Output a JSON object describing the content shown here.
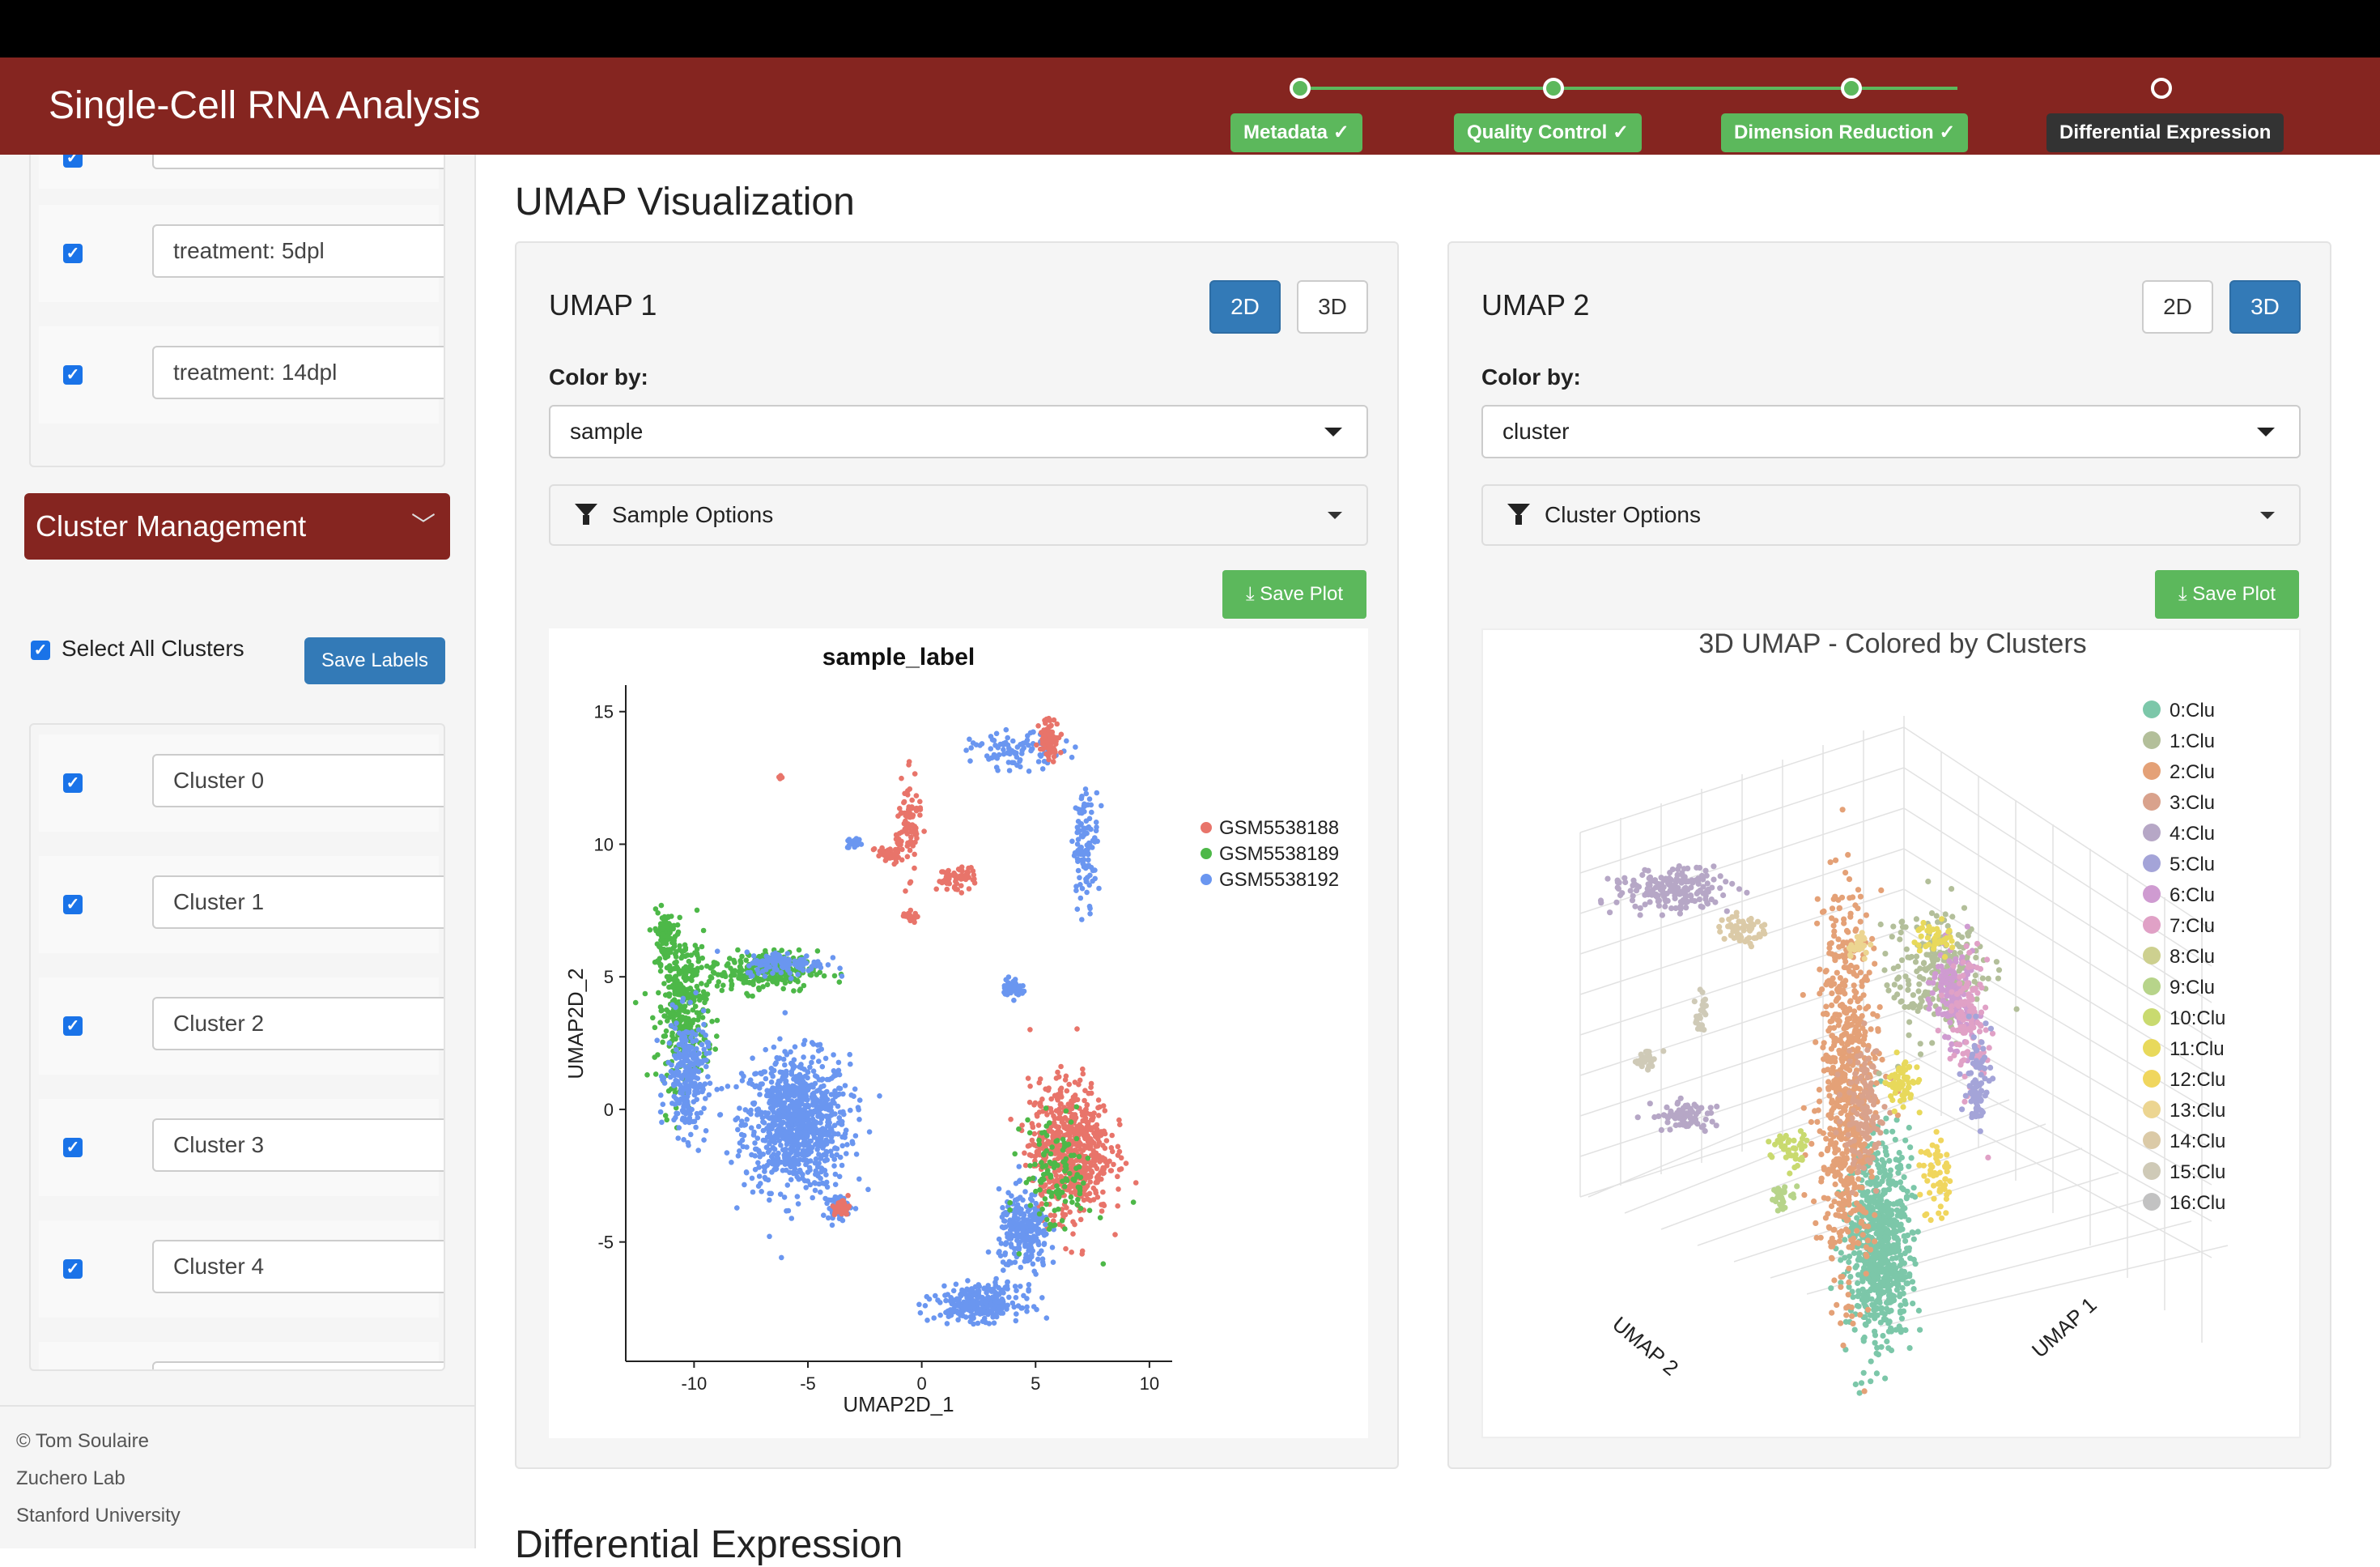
{
  "app": {
    "title": "Single-Cell RNA Analysis"
  },
  "stepper": {
    "steps": [
      {
        "label": "Metadata",
        "check": "✓",
        "status": "done"
      },
      {
        "label": "Quality Control",
        "check": "✓",
        "status": "done"
      },
      {
        "label": "Dimension Reduction",
        "check": "✓",
        "status": "done"
      },
      {
        "label": "Differential Expression",
        "check": "",
        "status": "active"
      }
    ]
  },
  "sidebar": {
    "metadata_items": [
      {
        "label": "treatment: 5dpl",
        "checked": true
      },
      {
        "label": "treatment: 14dpl",
        "checked": true
      }
    ],
    "cluster_management": {
      "title": "Cluster Management",
      "select_all_label": "Select All Clusters",
      "save_labels": "Save Labels",
      "clusters": [
        {
          "label": "Cluster 0",
          "checked": true
        },
        {
          "label": "Cluster 1",
          "checked": true
        },
        {
          "label": "Cluster 2",
          "checked": true
        },
        {
          "label": "Cluster 3",
          "checked": true
        },
        {
          "label": "Cluster 4",
          "checked": true
        }
      ]
    },
    "footer": {
      "line1": "© Tom Soulaire",
      "line2": "Zuchero Lab",
      "line3": "Stanford University"
    }
  },
  "main": {
    "title": "UMAP Visualization",
    "next_section_title": "Differential Expression",
    "umap1": {
      "title": "UMAP 1",
      "toggle_2d": "2D",
      "toggle_3d": "3D",
      "active": "2D",
      "color_by_label": "Color by:",
      "color_by_value": "sample",
      "options_label": "Sample Options",
      "save_plot": "Save Plot"
    },
    "umap2": {
      "title": "UMAP 2",
      "toggle_2d": "2D",
      "toggle_3d": "3D",
      "active": "3D",
      "color_by_label": "Color by:",
      "color_by_value": "cluster",
      "options_label": "Cluster Options",
      "save_plot": "Save Plot"
    }
  },
  "chart_data": [
    {
      "type": "scatter",
      "title": "sample_label",
      "xlabel": "UMAP2D_1",
      "ylabel": "UMAP2D_2",
      "xlim": [
        -13,
        11
      ],
      "ylim": [
        -9.5,
        16
      ],
      "xticks": [
        "-10",
        "-5",
        "0",
        "5",
        "10"
      ],
      "yticks": [
        "-5",
        "0",
        "5",
        "10",
        "15"
      ],
      "legend_position": "right",
      "series": [
        {
          "name": "GSM5538188",
          "color": "#e8746a"
        },
        {
          "name": "GSM5538189",
          "color": "#4db848"
        },
        {
          "name": "GSM5538192",
          "color": "#6a96f0"
        }
      ]
    },
    {
      "type": "scatter",
      "title": "3D UMAP - Colored by Clusters",
      "xlabel": "UMAP 1",
      "ylabel": "UMAP 2",
      "legend_position": "right",
      "series": [
        {
          "name": "0:Clu",
          "color": "#7cc7a9"
        },
        {
          "name": "1:Clu",
          "color": "#b3bf9a"
        },
        {
          "name": "2:Clu",
          "color": "#e4a177"
        },
        {
          "name": "3:Clu",
          "color": "#d9a28c"
        },
        {
          "name": "4:Clu",
          "color": "#b6a7c6"
        },
        {
          "name": "5:Clu",
          "color": "#a4a4d8"
        },
        {
          "name": "6:Clu",
          "color": "#cf9bd1"
        },
        {
          "name": "7:Clu",
          "color": "#e0a1c6"
        },
        {
          "name": "8:Clu",
          "color": "#cdd08f"
        },
        {
          "name": "9:Clu",
          "color": "#b7d48a"
        },
        {
          "name": "10:Clu",
          "color": "#c9da6f"
        },
        {
          "name": "11:Clu",
          "color": "#e8d95b"
        },
        {
          "name": "12:Clu",
          "color": "#f0d65e"
        },
        {
          "name": "13:Clu",
          "color": "#ecd591"
        },
        {
          "name": "14:Clu",
          "color": "#dbcaa7"
        },
        {
          "name": "15:Clu",
          "color": "#cfcab7"
        },
        {
          "name": "16:Clu",
          "color": "#c2c2c2"
        }
      ]
    }
  ]
}
